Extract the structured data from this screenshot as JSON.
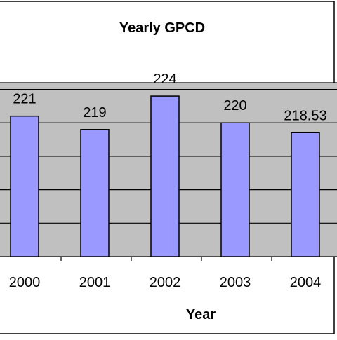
{
  "chart_data": {
    "type": "bar",
    "title": "Yearly GPCD",
    "xlabel": "Year",
    "ylabel": "",
    "categories": [
      "2000",
      "2001",
      "2002",
      "2003",
      "2004"
    ],
    "values": [
      221,
      219,
      224,
      220,
      218.53
    ],
    "value_labels": [
      "221",
      "219",
      "224",
      "220",
      "218.53"
    ],
    "ylim": [
      200,
      226
    ],
    "grid": true,
    "legend": "none",
    "colors": {
      "bar_fill": "#9999ff",
      "bar_stroke": "#000000",
      "plot_background": "#c0c0c0",
      "gridline": "#000000",
      "chart_border": "#000000"
    }
  }
}
